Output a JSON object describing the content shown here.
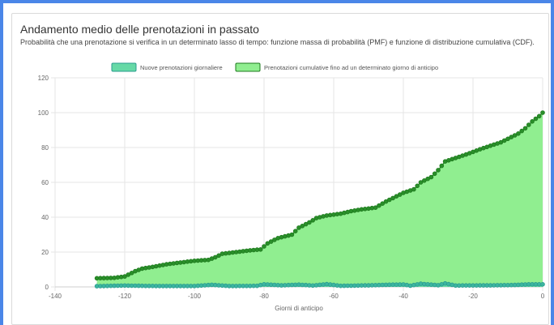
{
  "chart_data": {
    "type": "line",
    "title": "Andamento medio delle prenotazioni in passato",
    "subtitle": "Probabilità che una prenotazione si verifica in un determinato lasso di tempo: funzione massa di probabilità (PMF) e funzione di distribuzione cumulativa (CDF).",
    "xlabel": "Giorni di anticipo",
    "ylabel": "",
    "xlim": [
      -140,
      0
    ],
    "ylim": [
      0,
      120
    ],
    "x_ticks": [
      -140,
      -120,
      -100,
      -80,
      -60,
      -40,
      -20,
      0
    ],
    "y_ticks": [
      0,
      20,
      40,
      60,
      80,
      100,
      120
    ],
    "grid": true,
    "legend_position": "top-center",
    "series": [
      {
        "name": "Nuove prenotazioni giornaliere",
        "fill_color": "#66d9a6",
        "line_color": "#2a9d8f",
        "point_color": "#3cb5a0",
        "points": [
          [
            -128,
            0.4
          ],
          [
            -120,
            0.8
          ],
          [
            -115,
            0.6
          ],
          [
            -110,
            0.5
          ],
          [
            -100,
            0.5
          ],
          [
            -95,
            1.2
          ],
          [
            -90,
            0.5
          ],
          [
            -82,
            0.6
          ],
          [
            -80,
            1.5
          ],
          [
            -75,
            0.9
          ],
          [
            -70,
            1.3
          ],
          [
            -66,
            0.8
          ],
          [
            -62,
            1.6
          ],
          [
            -58,
            0.6
          ],
          [
            -50,
            0.9
          ],
          [
            -45,
            1.2
          ],
          [
            -40,
            1.4
          ],
          [
            -38,
            0.7
          ],
          [
            -35,
            1.8
          ],
          [
            -30,
            1.0
          ],
          [
            -28,
            2.0
          ],
          [
            -25,
            0.8
          ],
          [
            -15,
            0.9
          ],
          [
            -8,
            1.1
          ],
          [
            -4,
            1.5
          ],
          [
            0,
            1.5
          ]
        ]
      },
      {
        "name": "Prenotazioni cumulative fino ad un determinato giorno di anticipo",
        "fill_color": "#90ee90",
        "line_color": "#1e7b1e",
        "point_color": "#2a8f2a",
        "points": [
          [
            -128,
            5
          ],
          [
            -123,
            5.2
          ],
          [
            -120,
            6
          ],
          [
            -117,
            9
          ],
          [
            -115,
            10.5
          ],
          [
            -112,
            11.5
          ],
          [
            -108,
            13
          ],
          [
            -104,
            14
          ],
          [
            -100,
            15
          ],
          [
            -96,
            15.5
          ],
          [
            -94,
            17
          ],
          [
            -92,
            19
          ],
          [
            -88,
            20
          ],
          [
            -84,
            21
          ],
          [
            -81,
            21.5
          ],
          [
            -79,
            25
          ],
          [
            -76,
            28
          ],
          [
            -72,
            30
          ],
          [
            -70,
            34
          ],
          [
            -67,
            37
          ],
          [
            -65,
            39.5
          ],
          [
            -62,
            41
          ],
          [
            -58,
            42
          ],
          [
            -55,
            43.5
          ],
          [
            -52,
            44.5
          ],
          [
            -48,
            45.5
          ],
          [
            -45,
            49
          ],
          [
            -42,
            52
          ],
          [
            -40,
            54
          ],
          [
            -37,
            56
          ],
          [
            -35,
            60
          ],
          [
            -32,
            63
          ],
          [
            -30,
            67
          ],
          [
            -28,
            72
          ],
          [
            -25,
            74
          ],
          [
            -22,
            76
          ],
          [
            -18,
            79
          ],
          [
            -15,
            81
          ],
          [
            -12,
            83
          ],
          [
            -10,
            85
          ],
          [
            -7,
            88
          ],
          [
            -5,
            91
          ],
          [
            -3,
            95
          ],
          [
            -1,
            98
          ],
          [
            0,
            100
          ]
        ]
      }
    ]
  }
}
